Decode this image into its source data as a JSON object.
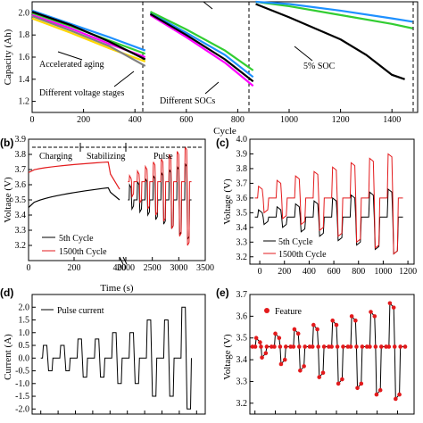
{
  "chart_data": [
    {
      "panel": "a",
      "type": "line",
      "ylabel": "Capacity (Ah)",
      "xlabel": "Cycle",
      "xlim": [
        0,
        1500
      ],
      "ylim": [
        1.1,
        2.1
      ],
      "xticks": [
        0,
        200,
        400,
        600,
        800,
        1000,
        1200,
        1400
      ],
      "yticks": [
        1.2,
        1.4,
        1.6,
        1.8,
        2.0
      ],
      "annotations": [
        "Accelerated aging",
        "Different voltage stages",
        "Different SOCs",
        "5% SOC"
      ],
      "series": [
        {
          "group": "accelerated-aging",
          "color": "#1e90ff",
          "x": [
            0,
            150,
            300,
            440
          ],
          "y": [
            2.02,
            1.9,
            1.78,
            1.66
          ]
        },
        {
          "group": "accelerated-aging",
          "color": "#ff00ff",
          "x": [
            0,
            150,
            300,
            440
          ],
          "y": [
            1.98,
            1.86,
            1.72,
            1.6
          ]
        },
        {
          "group": "accelerated-aging",
          "color": "#ffd700",
          "x": [
            0,
            150,
            300,
            440
          ],
          "y": [
            1.95,
            1.82,
            1.68,
            1.56
          ]
        },
        {
          "group": "accelerated-aging",
          "color": "#32cd32",
          "x": [
            0,
            150,
            300,
            440
          ],
          "y": [
            2.0,
            1.88,
            1.75,
            1.63
          ]
        },
        {
          "group": "accelerated-aging",
          "color": "#808080",
          "x": [
            0,
            150,
            300,
            440
          ],
          "y": [
            1.97,
            1.84,
            1.7,
            1.52
          ]
        },
        {
          "group": "accelerated-aging",
          "color": "#000000",
          "x": [
            0,
            150,
            300,
            440
          ],
          "y": [
            2.01,
            1.89,
            1.74,
            1.58
          ]
        },
        {
          "group": "different-socs",
          "color": "#ff00ff",
          "x": [
            460,
            600,
            750,
            860
          ],
          "y": [
            1.98,
            1.78,
            1.55,
            1.34
          ]
        },
        {
          "group": "different-socs",
          "color": "#1e90ff",
          "x": [
            460,
            600,
            750,
            860
          ],
          "y": [
            2.0,
            1.82,
            1.62,
            1.42
          ]
        },
        {
          "group": "different-socs",
          "color": "#000000",
          "x": [
            460,
            600,
            750,
            860
          ],
          "y": [
            1.99,
            1.8,
            1.58,
            1.38
          ]
        },
        {
          "group": "different-socs",
          "color": "#32cd32",
          "x": [
            460,
            600,
            750,
            860
          ],
          "y": [
            2.01,
            1.85,
            1.66,
            1.48
          ]
        },
        {
          "group": "5-percent-soc",
          "color": "#000000",
          "x": [
            870,
            1000,
            1200,
            1300,
            1400,
            1450
          ],
          "y": [
            2.08,
            1.96,
            1.76,
            1.62,
            1.44,
            1.4
          ]
        },
        {
          "group": "5-percent-soc",
          "color": "#32cd32",
          "x": [
            870,
            1000,
            1200,
            1400,
            1480
          ],
          "y": [
            2.1,
            2.06,
            1.98,
            1.9,
            1.86
          ]
        },
        {
          "group": "5-percent-soc",
          "color": "#1e90ff",
          "x": [
            870,
            1000,
            1200,
            1400,
            1480
          ],
          "y": [
            2.1,
            2.08,
            2.02,
            1.95,
            1.92
          ]
        }
      ]
    },
    {
      "panel": "b",
      "type": "line",
      "xlabel": "Time (s)",
      "ylabel": "Voltage (V)",
      "ylim": [
        3.1,
        3.9
      ],
      "yticks": [
        3.2,
        3.3,
        3.4,
        3.5,
        3.6,
        3.7,
        3.8,
        3.9
      ],
      "xticks": [
        0,
        200,
        400,
        2000,
        2500,
        3000,
        3500
      ],
      "axis_break": "between 400 and 2000",
      "phases": [
        "Charging",
        "Stabilizing",
        "Pulse"
      ],
      "legend": [
        "5th Cycle",
        "1500th Cycle"
      ],
      "series": [
        {
          "name": "5th Cycle",
          "color": "#000000",
          "charge_start": 3.45,
          "charge_end": 3.58,
          "rest_start": 3.55,
          "rest_end": 3.5,
          "pulse_base": 3.5,
          "pulse_up": [
            3.6,
            3.62,
            3.64,
            3.66,
            3.68,
            3.7,
            3.72,
            3.74
          ],
          "pulse_down": [
            3.44,
            3.42,
            3.4,
            3.37,
            3.34,
            3.31,
            3.27,
            3.24
          ]
        },
        {
          "name": "1500th Cycle",
          "color": "#e31a1c",
          "charge_start": 3.68,
          "charge_end": 3.75,
          "rest_start": 3.67,
          "rest_end": 3.57,
          "pulse_base": 3.62,
          "pulse_up": [
            3.66,
            3.69,
            3.72,
            3.75,
            3.77,
            3.8,
            3.82,
            3.85
          ],
          "pulse_down": [
            3.52,
            3.48,
            3.44,
            3.4,
            3.36,
            3.31,
            3.26,
            3.2
          ]
        }
      ]
    },
    {
      "panel": "c",
      "type": "line",
      "xlabel": "",
      "ylabel": "Voltage (V)",
      "xlim": [
        0,
        1200
      ],
      "ylim": [
        3.15,
        4.0
      ],
      "xticks": [
        0,
        200,
        400,
        600,
        800,
        1000,
        1200
      ],
      "yticks": [
        3.2,
        3.3,
        3.4,
        3.5,
        3.6,
        3.7,
        3.8,
        3.9,
        4.0
      ],
      "legend": [
        "5th Cycle",
        "1500th Cycle"
      ],
      "series": [
        {
          "name": "5th Cycle",
          "color": "#000000",
          "pulse_base": 3.47,
          "pulse_up": [
            3.52,
            3.54,
            3.56,
            3.58,
            3.6,
            3.62,
            3.64,
            3.66
          ],
          "pulse_down": [
            3.42,
            3.4,
            3.37,
            3.34,
            3.31,
            3.28,
            3.25,
            3.22
          ]
        },
        {
          "name": "1500th Cycle",
          "color": "#e31a1c",
          "pulse_base": 3.6,
          "pulse_up": [
            3.68,
            3.72,
            3.75,
            3.78,
            3.81,
            3.84,
            3.87,
            3.9
          ],
          "pulse_down": [
            3.5,
            3.46,
            3.42,
            3.38,
            3.34,
            3.3,
            3.26,
            3.22
          ]
        }
      ]
    },
    {
      "panel": "d",
      "type": "line",
      "ylabel": "Current (A)",
      "ylim": [
        -2.2,
        2.5
      ],
      "yticks": [
        -2.0,
        -1.5,
        -1.0,
        -0.5,
        0.0,
        0.5,
        1.0,
        1.5,
        2.0
      ],
      "legend": [
        "Pulse current"
      ],
      "series": [
        {
          "name": "Pulse current",
          "color": "#000000",
          "pulses_pos": [
            0.5,
            0.5,
            0.75,
            0.75,
            1.0,
            1.0,
            1.5,
            1.5,
            2.0
          ],
          "pulses_neg": [
            -0.5,
            -0.5,
            -0.75,
            -0.75,
            -1.0,
            -1.0,
            -1.5,
            -1.5,
            -2.0
          ]
        }
      ]
    },
    {
      "panel": "e",
      "type": "scatter",
      "ylabel": "Voltage (V)",
      "ylim": [
        3.15,
        3.7
      ],
      "yticks": [
        3.2,
        3.3,
        3.4,
        3.5,
        3.6,
        3.7
      ],
      "legend": [
        "Feature"
      ],
      "series": [
        {
          "name": "Feature",
          "color": "#e31a1c",
          "pulse_base": 3.46,
          "pulse_up": [
            3.5,
            3.52,
            3.54,
            3.56,
            3.58,
            3.6,
            3.62,
            3.66
          ],
          "pulse_down": [
            3.41,
            3.38,
            3.35,
            3.32,
            3.29,
            3.27,
            3.24,
            3.22
          ]
        }
      ]
    }
  ],
  "panel_labels": {
    "a": "(a)",
    "b": "(b)",
    "c": "(c)",
    "d": "(d)",
    "e": "(e)"
  }
}
